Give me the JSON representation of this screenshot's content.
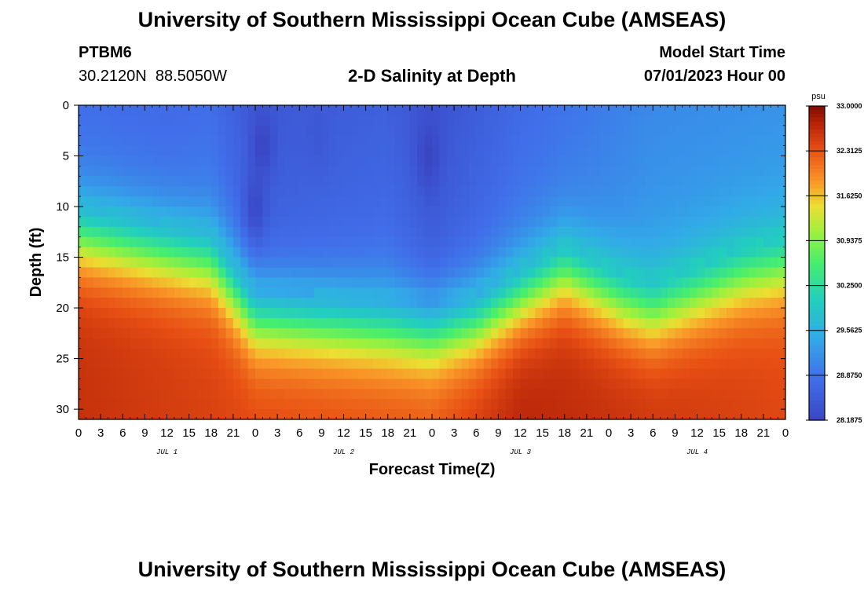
{
  "header": {
    "title": "University of Southern Mississippi Ocean Cube (AMSEAS)",
    "station_id": "PTBM6",
    "station_coords": "30.2120N  88.5050W",
    "subtitle": "2-D Salinity at Depth",
    "model_start_label": "Model Start Time",
    "model_start_value": "07/01/2023 Hour 00"
  },
  "footer": {
    "title": "University of Southern Mississippi Ocean Cube (AMSEAS)"
  },
  "chart_data": {
    "type": "heatmap",
    "title": "2-D Salinity at Depth",
    "xlabel": "Forecast Time(Z)",
    "ylabel": "Depth (ft)",
    "xlim": [
      0,
      96
    ],
    "ylim": [
      0,
      31
    ],
    "y_inverted": true,
    "x_ticks": [
      0,
      3,
      6,
      9,
      12,
      15,
      18,
      21,
      24,
      27,
      30,
      33,
      36,
      39,
      42,
      45,
      48,
      51,
      54,
      57,
      60,
      63,
      66,
      69,
      72,
      75,
      78,
      81,
      84,
      87,
      90,
      93,
      96
    ],
    "x_tick_labels": [
      "0",
      "3",
      "6",
      "9",
      "12",
      "15",
      "18",
      "21",
      "0",
      "3",
      "6",
      "9",
      "12",
      "15",
      "18",
      "21",
      "0",
      "3",
      "6",
      "9",
      "12",
      "15",
      "18",
      "21",
      "0",
      "3",
      "6",
      "9",
      "12",
      "15",
      "18",
      "21",
      "0"
    ],
    "y_ticks": [
      0,
      5,
      10,
      15,
      20,
      25,
      30
    ],
    "y_tick_labels": [
      "0",
      "5",
      "10",
      "15",
      "20",
      "25",
      "30"
    ],
    "day_labels": [
      {
        "label": "JUL 1",
        "x": 12
      },
      {
        "label": "JUL 2",
        "x": 36
      },
      {
        "label": "JUL 3",
        "x": 60
      },
      {
        "label": "JUL 4",
        "x": 84
      }
    ],
    "colorbar": {
      "unit": "psu",
      "min": 28.1875,
      "max": 33.0,
      "labels": [
        "33.0000",
        "32.3125",
        "31.6250",
        "30.9375",
        "30.2500",
        "29.5625",
        "28.8750",
        "28.1875"
      ],
      "values": [
        33.0,
        32.3125,
        31.625,
        30.9375,
        30.25,
        29.5625,
        28.875,
        28.1875
      ]
    },
    "field": {
      "surface_salinity_profile": [
        [
          0,
          28.8
        ],
        [
          12,
          28.75
        ],
        [
          18,
          28.8
        ],
        [
          24,
          28.45
        ],
        [
          30,
          28.5
        ],
        [
          42,
          28.6
        ],
        [
          48,
          28.35
        ],
        [
          60,
          28.75
        ],
        [
          68,
          28.9
        ],
        [
          78,
          29.1
        ],
        [
          96,
          29.2
        ]
      ],
      "halocline_depth_ft": [
        [
          0,
          13
        ],
        [
          18,
          15.5
        ],
        [
          24,
          21
        ],
        [
          48,
          22.5
        ],
        [
          54,
          21.5
        ],
        [
          66,
          16.5
        ],
        [
          74,
          19.5
        ],
        [
          78,
          20.5
        ],
        [
          90,
          17
        ],
        [
          96,
          16
        ]
      ],
      "deep_salinity_profile": [
        [
          0,
          32.6
        ],
        [
          24,
          32.4
        ],
        [
          48,
          32.3
        ],
        [
          60,
          32.7
        ],
        [
          96,
          32.4
        ]
      ],
      "low_salinity_features": [
        {
          "x": 25,
          "depth": 4,
          "min_value": 28.15
        },
        {
          "x": 24,
          "depth": 10,
          "min_value": 28.2
        },
        {
          "x": 47.5,
          "depth": 5,
          "min_value": 28.15
        },
        {
          "x": 32.5,
          "depth": 3,
          "min_value": 28.45
        }
      ]
    }
  }
}
